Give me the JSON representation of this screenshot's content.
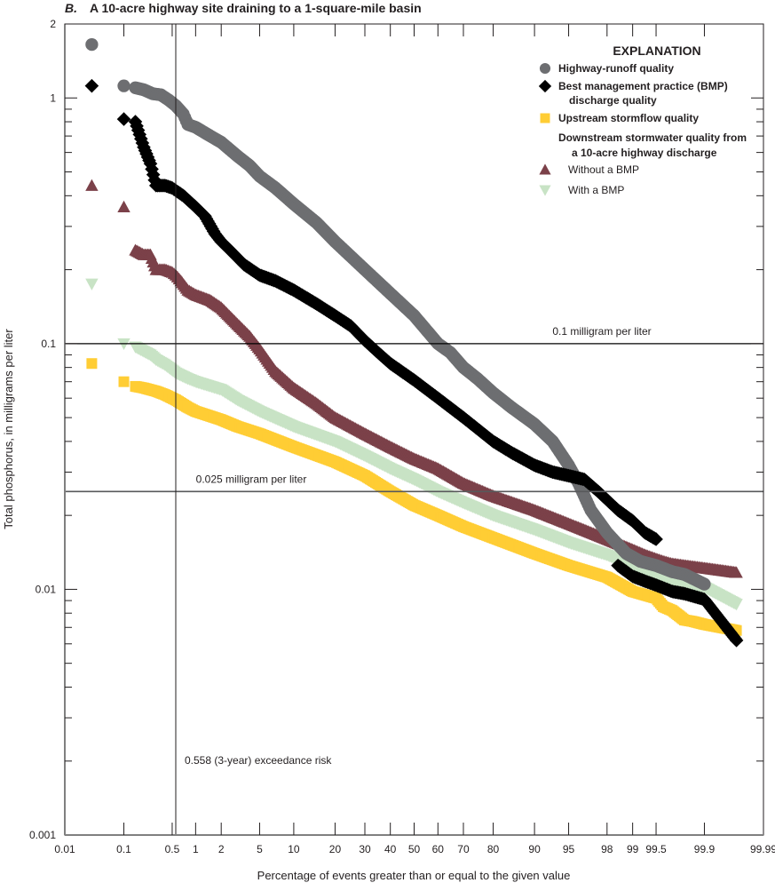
{
  "chart_data": {
    "type": "scatter",
    "panel_letter": "B.",
    "title": "A 10-acre highway site draining to a 1-square-mile basin",
    "xlabel": "Percentage of events greater than or equal to the given value",
    "ylabel": "Total phosphorus, in milligrams per liter",
    "x_scale": "normal-probability",
    "y_scale": "log",
    "xlim": [
      0.01,
      99.99
    ],
    "ylim": [
      0.001,
      2
    ],
    "x_ticks": [
      "0.01",
      "0.1",
      "0.5",
      "1",
      "2",
      "5",
      "10",
      "20",
      "30",
      "40",
      "50",
      "60",
      "70",
      "80",
      "90",
      "95",
      "98",
      "99",
      "99.5",
      "99.9",
      "99.99"
    ],
    "y_tick_labels": [
      "2",
      "1",
      "0.1",
      "0.01",
      "0.001"
    ],
    "grid": false,
    "reference_lines": [
      {
        "orientation": "horizontal",
        "value": 0.1,
        "label": "0.1 milligram per liter"
      },
      {
        "orientation": "horizontal",
        "value": 0.025,
        "label": "0.025 milligram per liter"
      },
      {
        "orientation": "vertical",
        "value": 0.558,
        "label": "0.558 (3-year) exceedance risk"
      }
    ],
    "legend": {
      "title": "EXPLANATION",
      "placement": "top-right",
      "group_heading": [
        "Downstream stormwater quality from",
        "a 10-acre highway discharge"
      ]
    },
    "series": [
      {
        "name": "Highway-runoff quality",
        "legend_lines": [
          "Highway-runoff quality"
        ],
        "marker": "circle",
        "color": "#6d6e71",
        "points": [
          [
            0.03,
            1.65
          ],
          [
            0.1,
            1.12
          ],
          [
            0.15,
            1.1
          ],
          [
            0.2,
            1.08
          ],
          [
            0.27,
            1.04
          ],
          [
            0.35,
            1.03
          ],
          [
            0.45,
            0.98
          ],
          [
            0.558,
            0.93
          ],
          [
            0.7,
            0.86
          ],
          [
            0.8,
            0.78
          ],
          [
            1,
            0.76
          ],
          [
            1.5,
            0.7
          ],
          [
            2,
            0.66
          ],
          [
            3,
            0.58
          ],
          [
            4,
            0.53
          ],
          [
            5,
            0.48
          ],
          [
            7,
            0.43
          ],
          [
            10,
            0.37
          ],
          [
            15,
            0.31
          ],
          [
            20,
            0.26
          ],
          [
            30,
            0.2
          ],
          [
            40,
            0.16
          ],
          [
            50,
            0.13
          ],
          [
            60,
            0.1
          ],
          [
            65,
            0.092
          ],
          [
            70,
            0.08
          ],
          [
            75,
            0.072
          ],
          [
            80,
            0.063
          ],
          [
            85,
            0.055
          ],
          [
            90,
            0.047
          ],
          [
            93,
            0.04
          ],
          [
            95,
            0.032
          ],
          [
            96,
            0.027
          ],
          [
            97,
            0.021
          ],
          [
            98,
            0.017
          ],
          [
            98.8,
            0.014
          ],
          [
            99.2,
            0.013
          ],
          [
            99.5,
            0.0125
          ],
          [
            99.7,
            0.0118
          ],
          [
            99.8,
            0.0115
          ],
          [
            99.9,
            0.0105
          ]
        ]
      },
      {
        "name": "Best management practice (BMP) discharge quality",
        "legend_lines": [
          "Best management practice (BMP)",
          "discharge quality"
        ],
        "marker": "diamond",
        "color": "#000000",
        "points": [
          [
            0.03,
            1.12
          ],
          [
            0.1,
            0.82
          ],
          [
            0.15,
            0.8
          ],
          [
            0.2,
            0.63
          ],
          [
            0.25,
            0.54
          ],
          [
            0.3,
            0.44
          ],
          [
            0.4,
            0.44
          ],
          [
            0.5,
            0.43
          ],
          [
            0.558,
            0.42
          ],
          [
            0.7,
            0.4
          ],
          [
            1,
            0.36
          ],
          [
            1.3,
            0.33
          ],
          [
            1.7,
            0.28
          ],
          [
            2,
            0.26
          ],
          [
            2.5,
            0.24
          ],
          [
            3.5,
            0.21
          ],
          [
            5,
            0.19
          ],
          [
            7,
            0.18
          ],
          [
            10,
            0.165
          ],
          [
            15,
            0.145
          ],
          [
            20,
            0.13
          ],
          [
            25,
            0.118
          ],
          [
            30,
            0.103
          ],
          [
            35,
            0.092
          ],
          [
            40,
            0.083
          ],
          [
            50,
            0.071
          ],
          [
            60,
            0.06
          ],
          [
            70,
            0.05
          ],
          [
            80,
            0.04
          ],
          [
            85,
            0.036
          ],
          [
            90,
            0.032
          ],
          [
            93,
            0.03
          ],
          [
            95,
            0.029
          ],
          [
            96.5,
            0.028
          ],
          [
            97.5,
            0.025
          ],
          [
            98.5,
            0.021
          ],
          [
            99,
            0.019
          ],
          [
            99.3,
            0.017
          ],
          [
            99.5,
            0.016
          ]
        ],
        "tail_points": [
          [
            98.5,
            0.0125
          ],
          [
            99,
            0.0113
          ],
          [
            99.3,
            0.0108
          ],
          [
            99.5,
            0.0104
          ],
          [
            99.7,
            0.0098
          ],
          [
            99.8,
            0.0096
          ],
          [
            99.9,
            0.0091
          ],
          [
            99.97,
            0.0062
          ]
        ]
      },
      {
        "name": "Upstream stormflow quality",
        "legend_lines": [
          "Upstream stormflow quality"
        ],
        "marker": "square",
        "color": "#ffcd34",
        "points": [
          [
            0.03,
            0.083
          ],
          [
            0.1,
            0.07
          ],
          [
            0.15,
            0.067
          ],
          [
            0.2,
            0.066
          ],
          [
            0.3,
            0.064
          ],
          [
            0.4,
            0.062
          ],
          [
            0.558,
            0.059
          ],
          [
            0.8,
            0.055
          ],
          [
            1,
            0.053
          ],
          [
            2,
            0.049
          ],
          [
            3,
            0.046
          ],
          [
            5,
            0.043
          ],
          [
            10,
            0.038
          ],
          [
            20,
            0.033
          ],
          [
            30,
            0.029
          ],
          [
            40,
            0.025
          ],
          [
            50,
            0.022
          ],
          [
            60,
            0.02
          ],
          [
            70,
            0.018
          ],
          [
            80,
            0.0162
          ],
          [
            90,
            0.014
          ],
          [
            95,
            0.0125
          ],
          [
            98,
            0.0112
          ],
          [
            99,
            0.0098
          ],
          [
            99.5,
            0.0092
          ],
          [
            99.6,
            0.0085
          ],
          [
            99.7,
            0.0082
          ],
          [
            99.8,
            0.0075
          ],
          [
            99.85,
            0.0074
          ],
          [
            99.9,
            0.0072
          ],
          [
            99.97,
            0.0068
          ]
        ]
      },
      {
        "name": "Without a BMP",
        "group": "Downstream stormwater quality from a 10-acre highway discharge",
        "legend_lines": [
          "Without a BMP"
        ],
        "marker": "triangle-up",
        "color": "#7b4149",
        "points": [
          [
            0.03,
            0.44
          ],
          [
            0.1,
            0.36
          ],
          [
            0.15,
            0.24
          ],
          [
            0.2,
            0.23
          ],
          [
            0.25,
            0.23
          ],
          [
            0.3,
            0.2
          ],
          [
            0.4,
            0.2
          ],
          [
            0.5,
            0.195
          ],
          [
            0.558,
            0.19
          ],
          [
            0.65,
            0.18
          ],
          [
            0.8,
            0.165
          ],
          [
            1,
            0.158
          ],
          [
            1.5,
            0.15
          ],
          [
            2,
            0.14
          ],
          [
            3,
            0.12
          ],
          [
            4,
            0.107
          ],
          [
            5,
            0.095
          ],
          [
            7,
            0.077
          ],
          [
            10,
            0.066
          ],
          [
            15,
            0.057
          ],
          [
            20,
            0.05
          ],
          [
            30,
            0.043
          ],
          [
            40,
            0.038
          ],
          [
            50,
            0.034
          ],
          [
            60,
            0.031
          ],
          [
            70,
            0.027
          ],
          [
            80,
            0.024
          ],
          [
            90,
            0.021
          ],
          [
            95,
            0.0185
          ],
          [
            98,
            0.016
          ],
          [
            99,
            0.0145
          ],
          [
            99.3,
            0.0138
          ],
          [
            99.5,
            0.0133
          ],
          [
            99.6,
            0.013
          ],
          [
            99.7,
            0.0127
          ],
          [
            99.8,
            0.0125
          ],
          [
            99.9,
            0.0122
          ],
          [
            99.97,
            0.0117
          ]
        ]
      },
      {
        "name": "With a BMP",
        "group": "Downstream stormwater quality from a 10-acre highway discharge",
        "legend_lines": [
          "With a BMP"
        ],
        "marker": "triangle-down",
        "color": "#c8e3c5",
        "points": [
          [
            0.03,
            0.175
          ],
          [
            0.1,
            0.1
          ],
          [
            0.15,
            0.097
          ],
          [
            0.2,
            0.093
          ],
          [
            0.25,
            0.09
          ],
          [
            0.3,
            0.086
          ],
          [
            0.4,
            0.082
          ],
          [
            0.558,
            0.076
          ],
          [
            0.8,
            0.072
          ],
          [
            1,
            0.07
          ],
          [
            2,
            0.065
          ],
          [
            3,
            0.059
          ],
          [
            5,
            0.053
          ],
          [
            10,
            0.046
          ],
          [
            20,
            0.04
          ],
          [
            30,
            0.035
          ],
          [
            40,
            0.031
          ],
          [
            50,
            0.028
          ],
          [
            60,
            0.025
          ],
          [
            70,
            0.0225
          ],
          [
            80,
            0.02
          ],
          [
            90,
            0.0175
          ],
          [
            95,
            0.0155
          ],
          [
            98,
            0.0138
          ],
          [
            99,
            0.0125
          ],
          [
            99.3,
            0.0118
          ],
          [
            99.5,
            0.0113
          ],
          [
            99.6,
            0.011
          ],
          [
            99.7,
            0.0107
          ],
          [
            99.8,
            0.0105
          ],
          [
            99.9,
            0.0102
          ],
          [
            99.97,
            0.0087
          ]
        ]
      }
    ]
  }
}
